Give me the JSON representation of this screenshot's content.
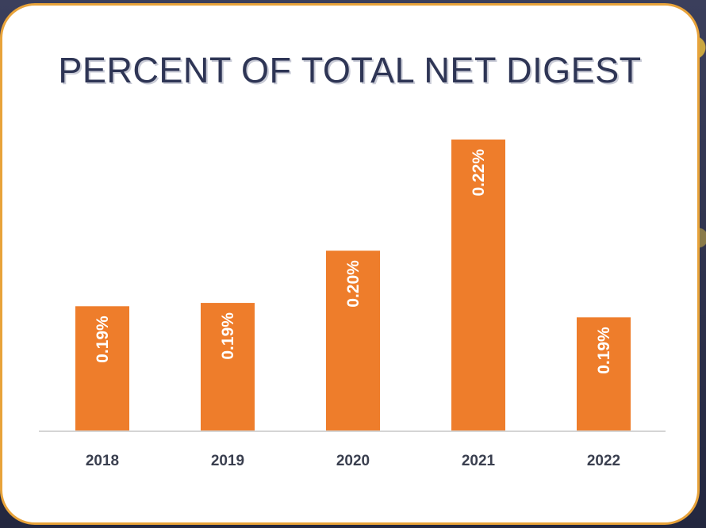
{
  "chart_data": {
    "type": "bar",
    "title": "PERCENT OF TOTAL NET DIGEST",
    "categories": [
      "2018",
      "2019",
      "2020",
      "2021",
      "2022"
    ],
    "values": [
      0.19,
      0.19,
      0.2,
      0.22,
      0.19
    ],
    "data_labels": [
      "0.19%",
      "0.19%",
      "0.20%",
      "0.22%",
      "0.19%"
    ],
    "xlabel": "",
    "ylabel": "",
    "grid": false,
    "bar_color": "#ee7d2b",
    "title_color": "#2e3555",
    "border_color": "#e8a33a"
  }
}
